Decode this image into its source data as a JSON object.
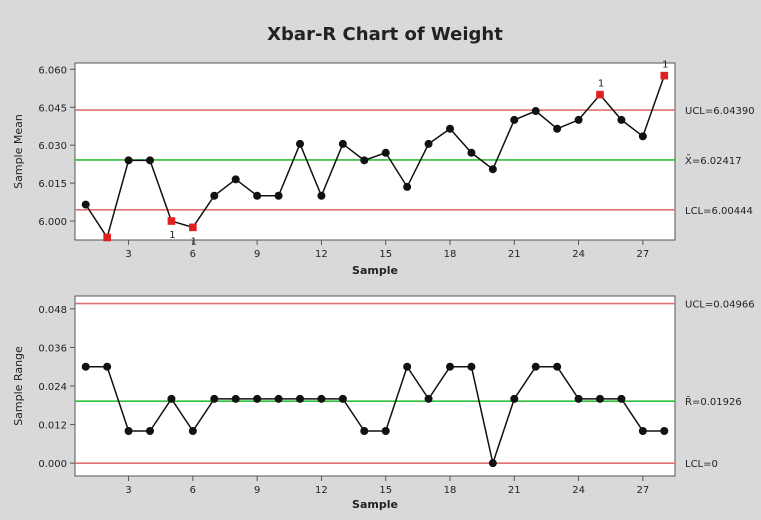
{
  "title": "Xbar-R Chart of Weight",
  "colors": {
    "frame_bg": "#d9d9d9",
    "plot_bg": "#ffffff",
    "control_limit": "#e07070",
    "center_line": "#2fbf3a",
    "point": "#111111",
    "flagged_point": "#e02020",
    "line": "#111111"
  },
  "chart_data": [
    {
      "type": "line",
      "title": "Xbar-R Chart of Weight",
      "xlabel": "Sample",
      "ylabel": "Sample Mean",
      "xlim": [
        0.5,
        28.5
      ],
      "ylim": [
        5.9925,
        6.0625
      ],
      "xticks": [
        3,
        6,
        9,
        12,
        15,
        18,
        21,
        24,
        27
      ],
      "yticks": [
        6.0,
        6.015,
        6.03,
        6.045,
        6.06
      ],
      "ytick_labels": [
        "6.000",
        "6.015",
        "6.030",
        "6.045",
        "6.060"
      ],
      "grid": false,
      "x": [
        1,
        2,
        3,
        4,
        5,
        6,
        7,
        8,
        9,
        10,
        11,
        12,
        13,
        14,
        15,
        16,
        17,
        18,
        19,
        20,
        21,
        22,
        23,
        24,
        25,
        26,
        27,
        28
      ],
      "values": [
        6.0065,
        5.9935,
        6.024,
        6.024,
        6.0,
        5.9975,
        6.01,
        6.0165,
        6.01,
        6.01,
        6.0305,
        6.01,
        6.0305,
        6.024,
        6.027,
        6.0135,
        6.0305,
        6.0365,
        6.027,
        6.0205,
        6.04,
        6.0435,
        6.0365,
        6.04,
        6.05,
        6.04,
        6.0335,
        6.0575
      ],
      "flagged": [
        2,
        5,
        6,
        25,
        28
      ],
      "flag_labels": [
        {
          "x": 5,
          "label": "1"
        },
        {
          "x": 6,
          "label": "1"
        },
        {
          "x": 25,
          "label": "1"
        },
        {
          "x": 28,
          "label": "1"
        }
      ],
      "reference_lines": [
        {
          "id": "ucl",
          "value": 6.0439,
          "label": "UCL=6.04390",
          "kind": "limit"
        },
        {
          "id": "center",
          "value": 6.02417,
          "label": "X̄=6.02417",
          "kind": "center"
        },
        {
          "id": "lcl",
          "value": 6.00444,
          "label": "LCL=6.00444",
          "kind": "limit"
        }
      ]
    },
    {
      "type": "line",
      "xlabel": "Sample",
      "ylabel": "Sample Range",
      "xlim": [
        0.5,
        28.5
      ],
      "ylim": [
        -0.004,
        0.052
      ],
      "xticks": [
        3,
        6,
        9,
        12,
        15,
        18,
        21,
        24,
        27
      ],
      "yticks": [
        0.0,
        0.012,
        0.024,
        0.036,
        0.048
      ],
      "ytick_labels": [
        "0.000",
        "0.012",
        "0.024",
        "0.036",
        "0.048"
      ],
      "grid": false,
      "x": [
        1,
        2,
        3,
        4,
        5,
        6,
        7,
        8,
        9,
        10,
        11,
        12,
        13,
        14,
        15,
        16,
        17,
        18,
        19,
        20,
        21,
        22,
        23,
        24,
        25,
        26,
        27,
        28
      ],
      "values": [
        0.03,
        0.03,
        0.01,
        0.01,
        0.02,
        0.01,
        0.02,
        0.02,
        0.02,
        0.02,
        0.02,
        0.02,
        0.02,
        0.01,
        0.01,
        0.03,
        0.02,
        0.03,
        0.03,
        0.0,
        0.02,
        0.03,
        0.03,
        0.02,
        0.02,
        0.02,
        0.01,
        0.01
      ],
      "flagged": [],
      "flag_labels": [],
      "reference_lines": [
        {
          "id": "ucl",
          "value": 0.04966,
          "label": "UCL=0.04966",
          "kind": "limit"
        },
        {
          "id": "center",
          "value": 0.01926,
          "label": "R̄=0.01926",
          "kind": "center"
        },
        {
          "id": "lcl",
          "value": 0.0,
          "label": "LCL=0",
          "kind": "limit"
        }
      ]
    }
  ]
}
